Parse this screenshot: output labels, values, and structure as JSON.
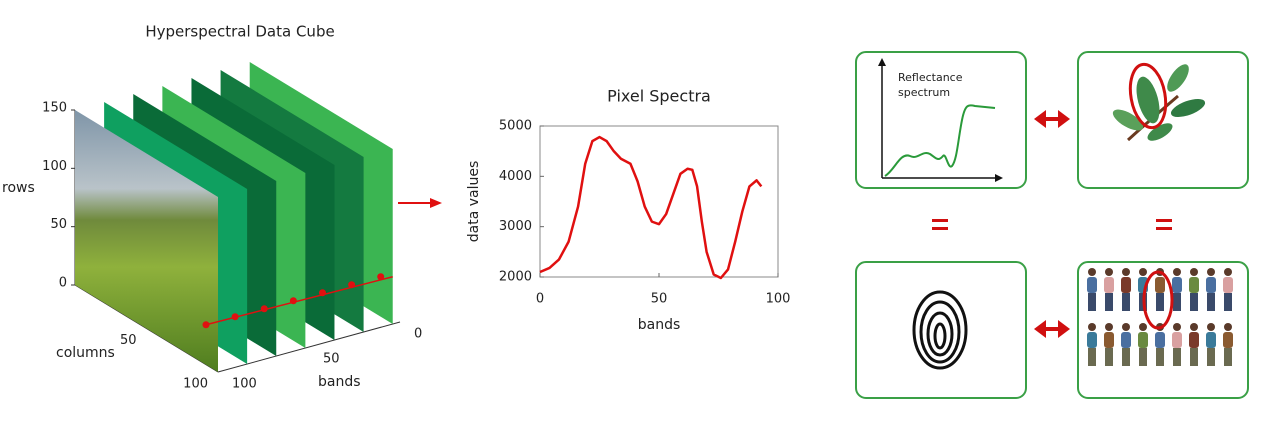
{
  "chart_data": [
    {
      "type": "cube",
      "title": "Hyperspectral Data Cube",
      "ylabel": "rows",
      "xlabel": "columns",
      "zlabel": "bands",
      "ylim": [
        0,
        150
      ],
      "yticks": [
        0,
        50,
        100,
        150
      ],
      "xlim": [
        0,
        100
      ],
      "xticks": [
        50,
        100
      ],
      "zlim": [
        0,
        100
      ],
      "zticks": [
        0,
        50,
        100
      ],
      "plane_colors": [
        "#0fa060",
        "#0a6b38",
        "#3bb552",
        "#0a6b38",
        "#147a40",
        "#3bb552"
      ]
    },
    {
      "type": "line",
      "title": "Pixel Spectra",
      "xlabel": "bands",
      "ylabel": "data values",
      "color": "#e01010",
      "x": [
        0,
        4,
        8,
        12,
        16,
        19,
        22,
        25,
        28,
        31,
        34,
        38,
        41,
        44,
        47,
        50,
        53,
        56,
        59,
        62,
        64,
        66,
        68,
        70,
        73,
        76,
        79,
        82,
        85,
        88,
        91,
        93
      ],
      "values": [
        2100,
        2180,
        2350,
        2700,
        3400,
        4250,
        4700,
        4780,
        4700,
        4500,
        4350,
        4250,
        3900,
        3400,
        3100,
        3050,
        3250,
        3650,
        4050,
        4150,
        4130,
        3800,
        3100,
        2500,
        2050,
        1980,
        2150,
        2700,
        3300,
        3800,
        3920,
        3800
      ],
      "xlim": [
        0,
        100
      ],
      "xticks": [
        0,
        50,
        100
      ],
      "ylim": [
        2000,
        5000
      ],
      "yticks": [
        2000,
        3000,
        4000,
        5000
      ]
    }
  ],
  "panels": {
    "reflectance_label": [
      "Reflectance",
      "spectrum"
    ]
  }
}
